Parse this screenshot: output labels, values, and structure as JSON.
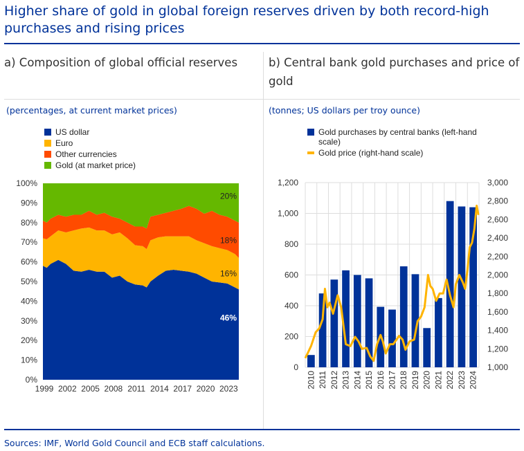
{
  "title": "Higher share of gold in global foreign reserves driven by both record-high purchases and rising prices",
  "sources": "Sources: IMF, World Gold Council and ECB staff calculations.",
  "colors": {
    "usd": "#003299",
    "euro": "#FFB400",
    "other": "#FF4B00",
    "gold": "#65B800",
    "bars": "#003299",
    "line": "#FFB400",
    "accent": "#003299"
  },
  "chart_data": [
    {
      "type": "area",
      "stacked": true,
      "heading": "a) Composition of global official reserves",
      "subtitle": "(percentages, at current market prices)",
      "legend_position": "top-left",
      "x": [
        1999,
        1999.5,
        2000,
        2001,
        2002,
        2003,
        2004,
        2005,
        2006,
        2007,
        2008,
        2009,
        2010,
        2011,
        2012,
        2012.5,
        2013,
        2014,
        2015,
        2016,
        2017,
        2018,
        2019,
        2020,
        2021,
        2022,
        2023,
        2024,
        2024.5
      ],
      "series": [
        {
          "name": "US dollar",
          "values": [
            58,
            57,
            59,
            61,
            59,
            55.5,
            55,
            56,
            55,
            55,
            52,
            53,
            50,
            48.5,
            48,
            47,
            50,
            53,
            55.5,
            56,
            55.5,
            55,
            54,
            52,
            50,
            49.5,
            49,
            47,
            46
          ]
        },
        {
          "name": "Euro",
          "values": [
            14,
            14.5,
            14,
            15,
            16,
            20.5,
            22,
            21.5,
            21,
            21,
            22,
            22,
            22,
            20,
            20,
            19.5,
            21,
            19.5,
            17.5,
            17,
            17.5,
            18,
            17,
            17.5,
            18,
            17.5,
            17,
            17,
            16
          ]
        },
        {
          "name": "Other currencies",
          "values": [
            9,
            8.5,
            9,
            8,
            8,
            8,
            7,
            8.5,
            8,
            9,
            9,
            7,
            8,
            9.5,
            10,
            10.5,
            12,
            11.5,
            12,
            13,
            14,
            15.5,
            16,
            15,
            18,
            17,
            17,
            17,
            18
          ]
        },
        {
          "name": "Gold (at market price)",
          "values": [
            19,
            20,
            18,
            16,
            17,
            16,
            16,
            14,
            16,
            15,
            17,
            18,
            20,
            22,
            22,
            23,
            17,
            16,
            15,
            14,
            13,
            11.5,
            13,
            15.5,
            14,
            16,
            17,
            19,
            20
          ]
        }
      ],
      "end_labels": [
        "46%",
        "16%",
        "18%",
        "20%"
      ],
      "ylim": [
        0,
        100
      ],
      "yticks": [
        "0%",
        "10%",
        "20%",
        "30%",
        "40%",
        "50%",
        "60%",
        "70%",
        "80%",
        "90%",
        "100%"
      ],
      "xlim": [
        1999,
        2024.5
      ],
      "xticks": [
        "1999",
        "2002",
        "2005",
        "2008",
        "2011",
        "2014",
        "2017",
        "2020",
        "2023"
      ],
      "grid": false
    },
    {
      "type": "bar+line",
      "heading": "b) Central bank gold purchases and price of gold",
      "subtitle": "(tonnes; US dollars per troy ounce)",
      "legend_position": "top-left",
      "categories": [
        "2010",
        "2011",
        "2012",
        "2013",
        "2014",
        "2015",
        "2016",
        "2017",
        "2018",
        "2019",
        "2020",
        "2021",
        "2022",
        "2023",
        "2024"
      ],
      "series": [
        {
          "name": "Gold purchases by central banks (left-hand scale)",
          "axis": "left",
          "values": [
            80,
            480,
            570,
            630,
            600,
            578,
            393,
            375,
            656,
            605,
            255,
            450,
            1080,
            1045,
            1040
          ]
        },
        {
          "name": "Gold price (right-hand scale)",
          "axis": "right",
          "x": [
            2010.0,
            2010.2,
            2010.5,
            2010.9,
            2011.2,
            2011.5,
            2011.7,
            2011.9,
            2012.1,
            2012.4,
            2012.8,
            2013.1,
            2013.3,
            2013.5,
            2013.9,
            2014.3,
            2014.6,
            2014.9,
            2015.3,
            2015.6,
            2015.9,
            2016.2,
            2016.5,
            2016.7,
            2016.95,
            2017.3,
            2017.6,
            2018.1,
            2018.4,
            2018.65,
            2019.0,
            2019.4,
            2019.7,
            2020.0,
            2020.3,
            2020.6,
            2020.8,
            2021.0,
            2021.3,
            2021.6,
            2021.9,
            2022.2,
            2022.5,
            2022.8,
            2023.0,
            2023.3,
            2023.6,
            2023.8,
            2024.0,
            2024.2,
            2024.4,
            2024.6,
            2024.8,
            2024.95
          ],
          "values": [
            1100,
            1150,
            1230,
            1380,
            1420,
            1520,
            1850,
            1650,
            1700,
            1580,
            1780,
            1650,
            1450,
            1250,
            1230,
            1330,
            1280,
            1200,
            1210,
            1120,
            1070,
            1250,
            1350,
            1280,
            1150,
            1250,
            1250,
            1340,
            1300,
            1190,
            1280,
            1300,
            1500,
            1550,
            1650,
            2000,
            1880,
            1850,
            1720,
            1800,
            1800,
            1950,
            1780,
            1650,
            1900,
            2000,
            1920,
            1850,
            2050,
            2300,
            2350,
            2500,
            2750,
            2650
          ]
        }
      ],
      "ylim_left": [
        0,
        1200
      ],
      "yticks_left": [
        "0",
        "200",
        "400",
        "600",
        "800",
        "1,000",
        "1,200"
      ],
      "ylim_right": [
        1000,
        3000
      ],
      "yticks_right": [
        "1,000",
        "1,200",
        "1,400",
        "1,600",
        "1,800",
        "2,000",
        "2,200",
        "2,400",
        "2,600",
        "2,800",
        "3,000"
      ],
      "grid": true
    }
  ]
}
